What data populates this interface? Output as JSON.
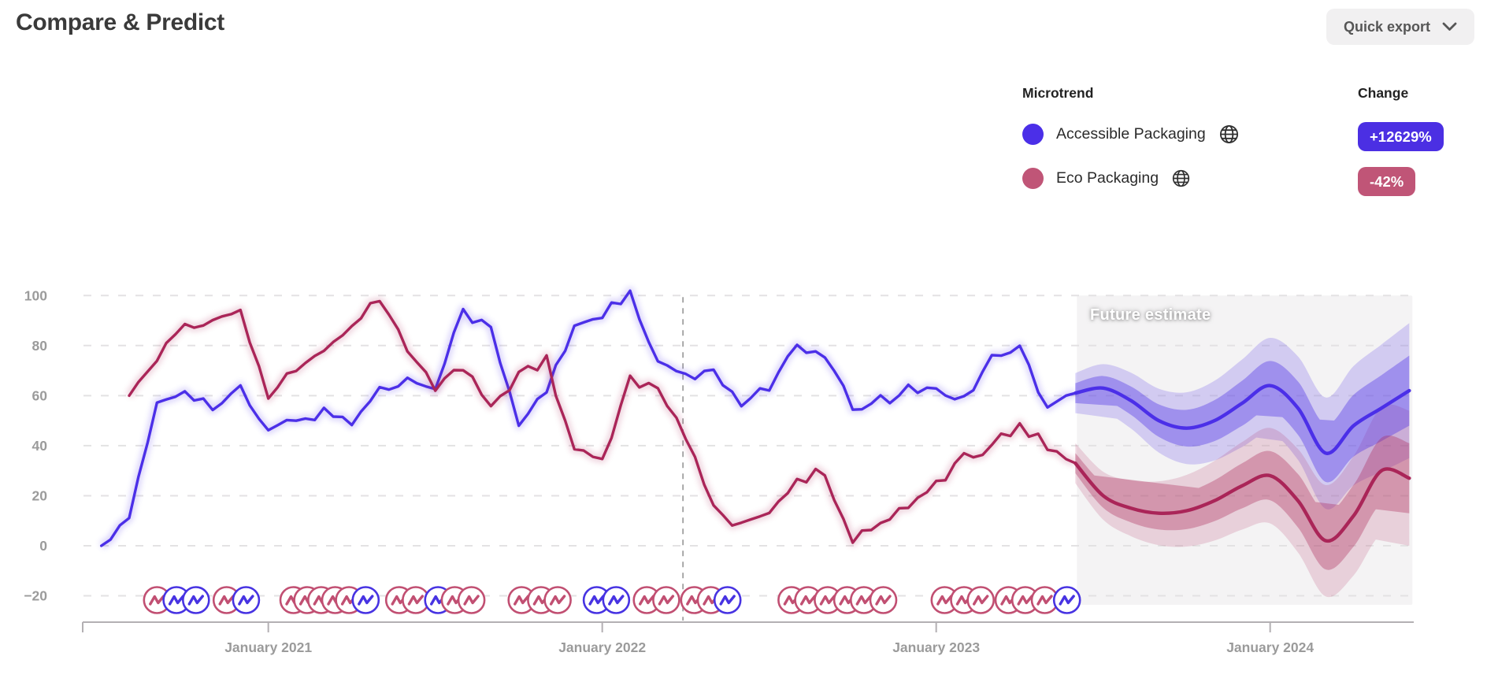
{
  "header": {
    "title": "Compare & Predict",
    "quick_export_label": "Quick export"
  },
  "legend": {
    "microtrend_header": "Microtrend",
    "change_header": "Change",
    "items": [
      {
        "label": "Accessible Packaging",
        "change": "+12629%",
        "color": "#4B2FE8",
        "badge_color": "#4B2FE3"
      },
      {
        "label": "Eco Packaging",
        "change": "-42%",
        "color": "#C05577",
        "badge_color": "#C05577"
      }
    ]
  },
  "chart_data": {
    "type": "line",
    "title": "",
    "xlabel": "",
    "ylabel": "",
    "ylim": [
      -20,
      100
    ],
    "grid": "dashed-horizontal",
    "y_ticks": [
      100,
      80,
      60,
      40,
      20,
      0,
      -20
    ],
    "x_ticks": [
      {
        "month_index": 6,
        "label": "January 2021"
      },
      {
        "month_index": 18,
        "label": "January 2022"
      },
      {
        "month_index": 30,
        "label": "January 2023"
      },
      {
        "month_index": 42,
        "label": "January 2024"
      }
    ],
    "x_start": "July 2020",
    "x_end": "June 2024",
    "months_per_point": 1,
    "divider_month": 20.9,
    "forecast_start_month": 35,
    "future_label": "Future estimate",
    "future_region_color": "#f4f3f4",
    "series": [
      {
        "name": "Accessible Packaging",
        "color": "#4B2FE8",
        "values": [
          0,
          10,
          57,
          63,
          55,
          62,
          45,
          51,
          53,
          50,
          62,
          66,
          65,
          94,
          86,
          48,
          62,
          88,
          93,
          100,
          72,
          68,
          68,
          58,
          64,
          79,
          75,
          55,
          58,
          62,
          63,
          58,
          77,
          79,
          55,
          61
        ],
        "forecast": [
          61,
          63,
          58,
          50,
          47,
          50,
          57,
          64,
          55,
          37,
          48,
          55,
          62
        ]
      },
      {
        "name": "Eco Packaging",
        "color": "#AA2558",
        "values": [
          null,
          60,
          76,
          88,
          90,
          93,
          60,
          70,
          79,
          89,
          100,
          80,
          64,
          70,
          57,
          68,
          74,
          38,
          34,
          66,
          62,
          45,
          15,
          8,
          12,
          27,
          29,
          3,
          9,
          15,
          25,
          35,
          40,
          48,
          40,
          33
        ],
        "forecast": [
          33,
          20,
          15,
          13,
          14,
          18,
          24,
          28,
          18,
          2,
          12,
          30,
          27
        ]
      }
    ],
    "forecast_band": {
      "inner_start": 4,
      "inner_end": 14,
      "outer_start": 8,
      "outer_end": 27
    },
    "event_markers": [
      {
        "m": 2.0,
        "series": "eco"
      },
      {
        "m": 2.7,
        "series": "acc"
      },
      {
        "m": 3.4,
        "series": "acc"
      },
      {
        "m": 4.5,
        "series": "eco"
      },
      {
        "m": 5.2,
        "series": "acc"
      },
      {
        "m": 6.9,
        "series": "eco"
      },
      {
        "m": 7.4,
        "series": "eco"
      },
      {
        "m": 7.9,
        "series": "eco"
      },
      {
        "m": 8.4,
        "series": "eco"
      },
      {
        "m": 8.9,
        "series": "eco"
      },
      {
        "m": 9.5,
        "series": "acc"
      },
      {
        "m": 10.7,
        "series": "eco"
      },
      {
        "m": 11.3,
        "series": "eco"
      },
      {
        "m": 12.1,
        "series": "acc"
      },
      {
        "m": 12.7,
        "series": "eco"
      },
      {
        "m": 13.3,
        "series": "eco"
      },
      {
        "m": 15.1,
        "series": "eco"
      },
      {
        "m": 15.8,
        "series": "eco"
      },
      {
        "m": 16.4,
        "series": "eco"
      },
      {
        "m": 17.8,
        "series": "acc"
      },
      {
        "m": 18.5,
        "series": "acc"
      },
      {
        "m": 19.6,
        "series": "eco"
      },
      {
        "m": 20.3,
        "series": "eco"
      },
      {
        "m": 21.3,
        "series": "eco"
      },
      {
        "m": 21.9,
        "series": "eco"
      },
      {
        "m": 22.5,
        "series": "acc"
      },
      {
        "m": 24.8,
        "series": "eco"
      },
      {
        "m": 25.4,
        "series": "eco"
      },
      {
        "m": 26.1,
        "series": "eco"
      },
      {
        "m": 26.8,
        "series": "eco"
      },
      {
        "m": 27.4,
        "series": "eco"
      },
      {
        "m": 28.1,
        "series": "eco"
      },
      {
        "m": 30.3,
        "series": "eco"
      },
      {
        "m": 31.0,
        "series": "eco"
      },
      {
        "m": 31.6,
        "series": "eco"
      },
      {
        "m": 32.6,
        "series": "eco"
      },
      {
        "m": 33.2,
        "series": "eco"
      },
      {
        "m": 33.9,
        "series": "eco"
      },
      {
        "m": 34.7,
        "series": "acc"
      }
    ],
    "marker_colors": {
      "acc": "#4733E2",
      "eco": "#C14F72"
    }
  }
}
